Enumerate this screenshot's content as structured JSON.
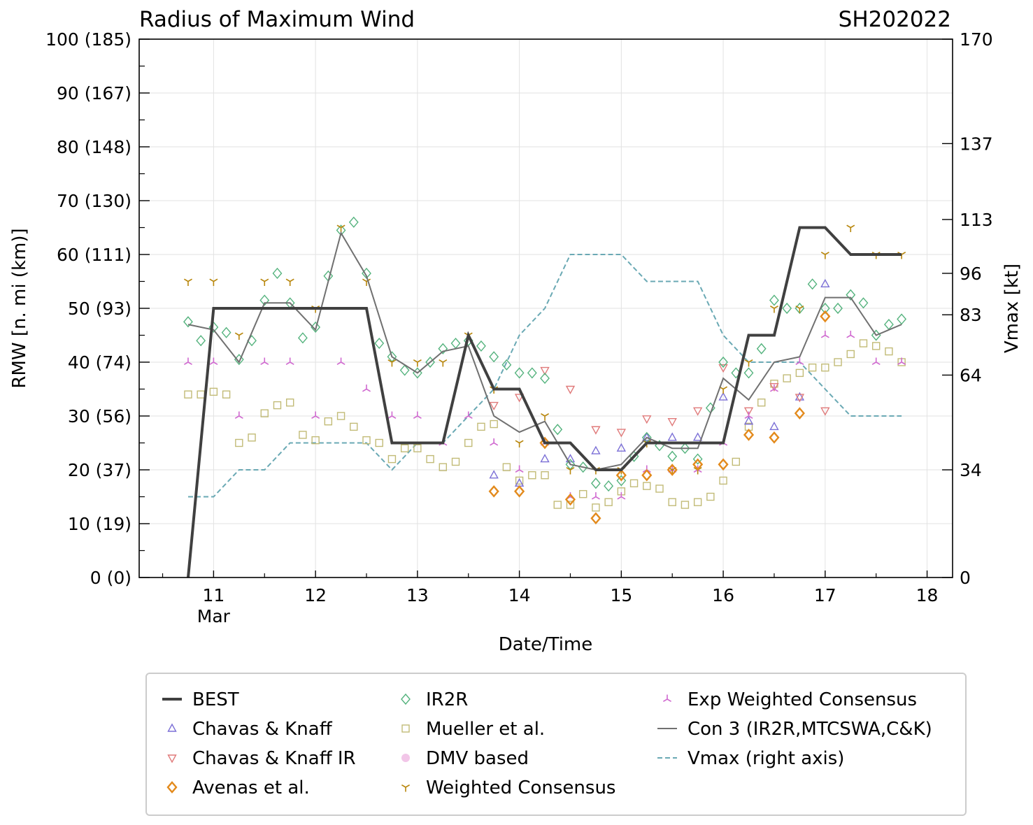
{
  "chart_data": {
    "type": "line",
    "title": "Radius of Maximum Wind",
    "storm_id": "SH202022",
    "xlabel": "Date/Time",
    "ylabel": "RMW [n. mi (km)]",
    "y2label": "Vmax [kt]",
    "xlim": [
      10.27,
      18.25
    ],
    "ylim": [
      0,
      100
    ],
    "x_ticks": [
      11,
      12,
      13,
      14,
      15,
      16,
      17,
      18
    ],
    "x_tick_labels": [
      "11",
      "12",
      "13",
      "14",
      "15",
      "16",
      "17",
      "18"
    ],
    "x_month_label": "Mar",
    "y_ticks": [
      0,
      10,
      20,
      30,
      40,
      50,
      60,
      70,
      80,
      90,
      100
    ],
    "y_tick_labels": [
      "0 (0)",
      "10 (19)",
      "20 (37)",
      "30 (56)",
      "40 (74)",
      "50 (93)",
      "60 (111)",
      "70 (130)",
      "80 (148)",
      "90 (167)",
      "100 (185)"
    ],
    "y2_ticks": [
      0,
      34,
      64,
      83,
      96,
      113,
      137,
      170
    ],
    "y2_tick_labels": [
      "0",
      "34",
      "64",
      "83",
      "96",
      "113",
      "137",
      "170"
    ],
    "y2_rmw_positions": [
      0,
      20,
      37.6,
      48.8,
      56.5,
      66.5,
      80.6,
      100
    ],
    "grid": true,
    "legend_position": "bottom",
    "colors": {
      "best": "#404040",
      "ck": "#7b6fd6",
      "ckir": "#e07a7a",
      "avenas": "#e38a1c",
      "ir2r": "#55b37e",
      "mueller": "#c2bb77",
      "dmv": "#f2c6e8",
      "wc": "#b8860b",
      "ewc": "#d06ad0",
      "con3": "#707070",
      "vmax": "#6aa9b4"
    },
    "legend": [
      {
        "key": "best",
        "label": "BEST"
      },
      {
        "key": "ck",
        "label": "Chavas & Knaff"
      },
      {
        "key": "ckir",
        "label": "Chavas & Knaff IR"
      },
      {
        "key": "avenas",
        "label": "Avenas et al."
      },
      {
        "key": "ir2r",
        "label": "IR2R"
      },
      {
        "key": "mueller",
        "label": "Mueller et al."
      },
      {
        "key": "dmv",
        "label": "DMV based"
      },
      {
        "key": "wc",
        "label": "Weighted Consensus"
      },
      {
        "key": "ewc",
        "label": "Exp Weighted Consensus"
      },
      {
        "key": "con3",
        "label": "Con 3 (IR2R,MTCSWA,C&K)"
      },
      {
        "key": "vmax",
        "label": "Vmax (right axis)"
      }
    ],
    "series": [
      {
        "key": "best",
        "name": "BEST",
        "style": "line",
        "x": [
          10.75,
          11.0,
          11.25,
          11.5,
          11.75,
          12.0,
          12.25,
          12.5,
          12.75,
          13.0,
          13.25,
          13.5,
          13.75,
          14.0,
          14.25,
          14.5,
          14.75,
          15.0,
          15.25,
          15.5,
          15.75,
          16.0,
          16.25,
          16.5,
          16.75,
          17.0,
          17.25,
          17.5,
          17.75
        ],
        "y": [
          0,
          50,
          50,
          50,
          50,
          50,
          50,
          50,
          25,
          25,
          25,
          45,
          35,
          35,
          25,
          25,
          20,
          20,
          25,
          25,
          25,
          25,
          45,
          45,
          65,
          65,
          60,
          60,
          60
        ]
      },
      {
        "key": "con3",
        "name": "Con 3 (IR2R,MTCSWA,C&K)",
        "style": "line",
        "x": [
          10.75,
          11.0,
          11.25,
          11.5,
          11.75,
          12.0,
          12.25,
          12.5,
          12.75,
          13.0,
          13.25,
          13.5,
          13.75,
          14.0,
          14.25,
          14.5,
          14.75,
          15.0,
          15.25,
          15.5,
          15.75,
          16.0,
          16.25,
          16.5,
          16.75,
          17.0,
          17.25,
          17.5,
          17.75
        ],
        "y": [
          47,
          46,
          40,
          51,
          51,
          46,
          64,
          56,
          41,
          38,
          42,
          43,
          30,
          27,
          29,
          21,
          20,
          21,
          26,
          24,
          24,
          37,
          33,
          40,
          41,
          52,
          52,
          45,
          47
        ]
      },
      {
        "key": "vmax",
        "name": "Vmax (right axis)",
        "style": "dashed",
        "x": [
          10.75,
          11.0,
          11.25,
          11.5,
          11.75,
          12.0,
          12.25,
          12.5,
          12.75,
          13.0,
          13.25,
          13.5,
          13.75,
          14.0,
          14.25,
          14.5,
          14.75,
          15.0,
          15.25,
          15.5,
          15.75,
          16.0,
          16.25,
          16.5,
          16.75,
          17.0,
          17.25,
          17.5,
          17.75
        ],
        "y": [
          15,
          15,
          20,
          20,
          25,
          25,
          25,
          25,
          20,
          25,
          25,
          30,
          35,
          45,
          50,
          60,
          60,
          60,
          55,
          55,
          55,
          45,
          40,
          40,
          40,
          35,
          30,
          30,
          30
        ]
      },
      {
        "key": "ir2r",
        "name": "IR2R",
        "style": "marker",
        "marker": "diamond",
        "x": [
          10.75,
          10.875,
          11.0,
          11.125,
          11.25,
          11.375,
          11.5,
          11.625,
          11.75,
          11.875,
          12.0,
          12.125,
          12.25,
          12.375,
          12.5,
          12.625,
          12.75,
          12.875,
          13.0,
          13.125,
          13.25,
          13.375,
          13.5,
          13.625,
          13.75,
          13.875,
          14.0,
          14.125,
          14.25,
          14.375,
          14.5,
          14.625,
          14.75,
          14.875,
          15.0,
          15.125,
          15.25,
          15.375,
          15.5,
          15.625,
          15.75,
          15.875,
          16.0,
          16.125,
          16.25,
          16.375,
          16.5,
          16.625,
          16.75,
          16.875,
          17.0,
          17.125,
          17.25,
          17.375,
          17.5,
          17.625,
          17.75
        ],
        "y": [
          47.5,
          44,
          46.5,
          45.5,
          40.5,
          44,
          51.5,
          56.5,
          51,
          44.5,
          46.5,
          56,
          64.5,
          66,
          56.5,
          43.5,
          41,
          38.5,
          38,
          40,
          42.5,
          43.5,
          44,
          43,
          41,
          39.5,
          38,
          38,
          37,
          27.5,
          21,
          20.5,
          17.5,
          17,
          18,
          22.5,
          26,
          24.5,
          22.5,
          24,
          22,
          31.5,
          40,
          38,
          38,
          42.5,
          51.5,
          50,
          50,
          54.5,
          50,
          50,
          52.5,
          51,
          45,
          47,
          48
        ]
      },
      {
        "key": "mueller",
        "name": "Mueller et al.",
        "style": "marker",
        "marker": "square",
        "x": [
          10.75,
          10.875,
          11.0,
          11.125,
          11.25,
          11.375,
          11.5,
          11.625,
          11.75,
          11.875,
          12.0,
          12.125,
          12.25,
          12.375,
          12.5,
          12.625,
          12.75,
          12.875,
          13.0,
          13.125,
          13.25,
          13.375,
          13.5,
          13.625,
          13.75,
          13.875,
          14.0,
          14.125,
          14.25,
          14.375,
          14.5,
          14.625,
          14.75,
          14.875,
          15.0,
          15.125,
          15.25,
          15.375,
          15.5,
          15.625,
          15.75,
          15.875,
          16.0,
          16.125,
          16.25,
          16.375,
          16.5,
          16.625,
          16.75,
          16.875,
          17.0,
          17.125,
          17.25,
          17.375,
          17.5,
          17.625,
          17.75
        ],
        "y": [
          34,
          34,
          34.5,
          34,
          25,
          26,
          30.5,
          32,
          32.5,
          26.5,
          25.5,
          29,
          30,
          28,
          25.5,
          25,
          22,
          24,
          24,
          22,
          20.5,
          21.5,
          25,
          28,
          28.5,
          20.5,
          18,
          19,
          19,
          13.5,
          13.5,
          15.5,
          13,
          14,
          16,
          17.5,
          17,
          16.5,
          14,
          13.5,
          14,
          15,
          18,
          21.5,
          28,
          32.5,
          36,
          37,
          38,
          39,
          39,
          40,
          41.5,
          43.5,
          43,
          42,
          40
        ]
      },
      {
        "key": "ck",
        "name": "Chavas & Knaff",
        "style": "marker",
        "marker": "triangle-up",
        "x": [
          13.75,
          14.0,
          14.25,
          14.5,
          14.75,
          15.0,
          15.25,
          15.5,
          15.75,
          16.0,
          16.25,
          16.5,
          16.75,
          17.0
        ],
        "y": [
          19,
          17.5,
          22,
          22,
          23.5,
          24,
          26,
          26,
          26,
          33.5,
          29,
          28,
          33.5,
          54.5
        ]
      },
      {
        "key": "ckir",
        "name": "Chavas & Knaff IR",
        "style": "marker",
        "marker": "triangle-down",
        "x": [
          13.75,
          14.0,
          14.25,
          14.5,
          14.75,
          15.0,
          15.25,
          15.5,
          15.75,
          16.0,
          16.25,
          16.5,
          16.75,
          17.0
        ],
        "y": [
          32,
          33.5,
          38.5,
          35,
          27.5,
          27,
          29.5,
          29,
          31,
          39,
          31,
          35.5,
          33.5,
          31
        ]
      },
      {
        "key": "avenas",
        "name": "Avenas et al.",
        "style": "marker",
        "marker": "diamond",
        "x": [
          13.75,
          14.0,
          14.25,
          14.5,
          14.75,
          15.0,
          15.25,
          15.5,
          15.75,
          16.0,
          16.25,
          16.5,
          16.75,
          17.0
        ],
        "y": [
          16,
          16,
          25,
          14.5,
          11,
          19,
          19,
          20,
          21,
          21,
          26.5,
          26,
          30.5,
          48.5
        ]
      },
      {
        "key": "wc",
        "name": "Weighted Consensus",
        "style": "marker",
        "marker": "tri-down",
        "x": [
          10.75,
          11.0,
          11.25,
          11.5,
          11.75,
          12.0,
          12.25,
          12.5,
          12.75,
          13.0,
          13.25,
          13.5,
          13.75,
          14.0,
          14.25,
          14.5,
          14.75,
          15.0,
          15.25,
          15.5,
          15.75,
          16.0,
          16.25,
          16.5,
          16.75,
          17.0,
          17.25,
          17.5,
          17.75
        ],
        "y": [
          55,
          55,
          45,
          55,
          55,
          50,
          65,
          55,
          40,
          40,
          40,
          45,
          35,
          25,
          30,
          20,
          20,
          20,
          25,
          20,
          20,
          35,
          40,
          50,
          50,
          60,
          65,
          60,
          60
        ]
      },
      {
        "key": "ewc",
        "name": "Exp Weighted Consensus",
        "style": "marker",
        "marker": "tri-up",
        "x": [
          10.75,
          11.0,
          11.25,
          11.5,
          11.75,
          12.0,
          12.25,
          12.5,
          12.75,
          13.0,
          13.25,
          13.5,
          13.75,
          14.0,
          14.25,
          14.5,
          14.75,
          15.0,
          15.25,
          15.5,
          15.75,
          16.0,
          16.25,
          16.5,
          16.75,
          17.0,
          17.25,
          17.5,
          17.75
        ],
        "y": [
          40,
          40,
          30,
          40,
          40,
          30,
          40,
          35,
          30,
          30,
          25,
          30,
          25,
          20,
          25,
          15,
          15,
          15,
          20,
          20,
          20,
          25,
          30,
          35,
          40,
          45,
          45,
          40,
          40
        ]
      }
    ]
  }
}
